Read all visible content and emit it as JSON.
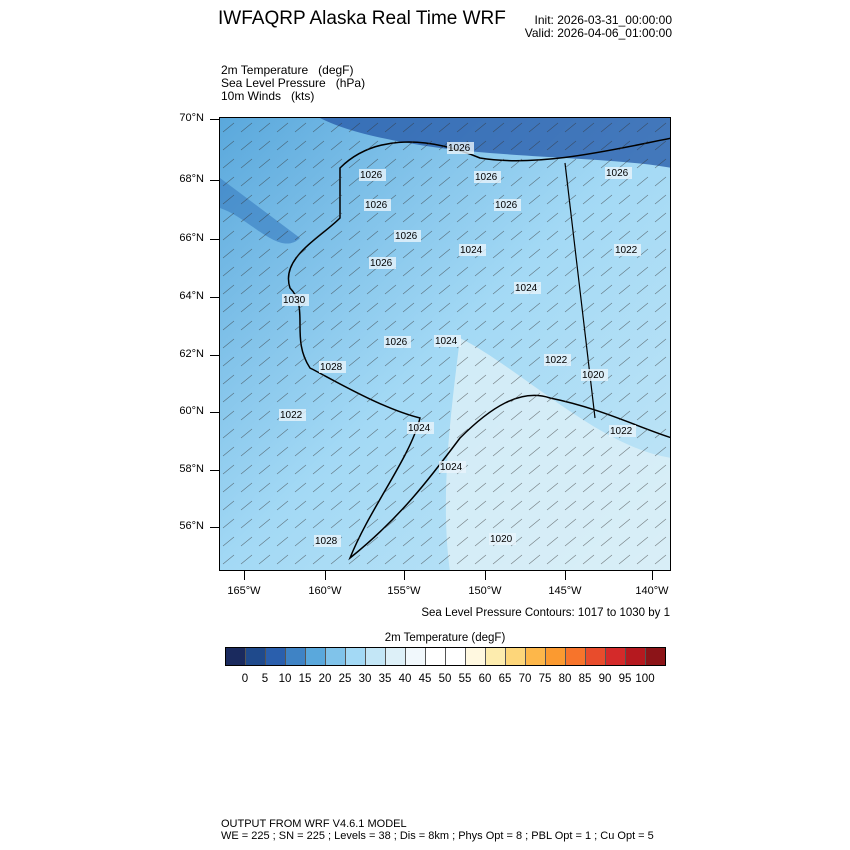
{
  "header": {
    "title": "IWFAQRP Alaska Real Time WRF",
    "init": "Init: 2026-03-31_00:00:00",
    "valid": "Valid: 2026-04-06_01:00:00"
  },
  "fields": [
    "2m Temperature   (degF)",
    "Sea Level Pressure   (hPa)",
    "10m Winds   (kts)"
  ],
  "map": {
    "lat_labels": [
      "70°N",
      "68°N",
      "66°N",
      "64°N",
      "62°N",
      "60°N",
      "58°N",
      "56°N"
    ],
    "lon_labels": [
      "165°W",
      "160°W",
      "155°W",
      "150°W",
      "145°W",
      "140°W"
    ],
    "pressure_labels": [
      "1026",
      "1026",
      "1026",
      "1026",
      "1026",
      "1024",
      "1026",
      "1026",
      "1022",
      "1024",
      "1030",
      "1022",
      "1026",
      "1024",
      "1028",
      "1022",
      "1020",
      "1024",
      "1024",
      "1022",
      "1026",
      "1028",
      "1020"
    ]
  },
  "slp_note": "Sea Level Pressure Contours: 1017 to 1030 by 1",
  "colorbar": {
    "title": "2m Temperature  (degF)",
    "labels": [
      "0",
      "5",
      "10",
      "15",
      "20",
      "25",
      "30",
      "35",
      "40",
      "45",
      "50",
      "55",
      "60",
      "65",
      "70",
      "75",
      "80",
      "85",
      "90",
      "95",
      "100"
    ],
    "colors": [
      "#1a2a5e",
      "#1f4a8c",
      "#2a5fad",
      "#3f83c5",
      "#5aa8dc",
      "#80c3ea",
      "#a3d9f5",
      "#c3e6f6",
      "#ddf0f8",
      "#f1f8fc",
      "#ffffff",
      "#ffffff",
      "#fff8e0",
      "#fdecae",
      "#fdd67a",
      "#fdb74a",
      "#fb9a30",
      "#f7742b",
      "#e84c2c",
      "#d42a2a",
      "#b5191f",
      "#8c1418"
    ]
  },
  "footer": {
    "line1": "OUTPUT FROM WRF V4.6.1 MODEL",
    "line2": "WE = 225 ; SN = 225 ; Levels = 38 ; Dis = 8km ; Phys Opt = 8 ; PBL Opt = 1 ; Cu Opt = 5"
  }
}
